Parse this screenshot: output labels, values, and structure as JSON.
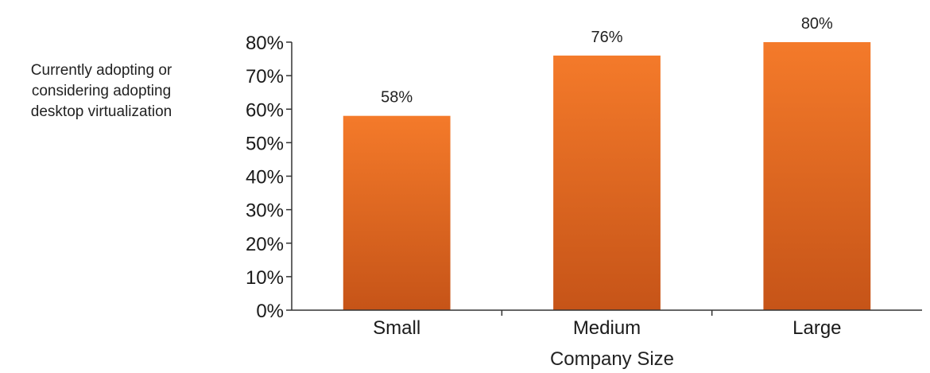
{
  "chart_data": {
    "type": "bar",
    "categories": [
      "Small",
      "Medium",
      "Large"
    ],
    "values": [
      58,
      76,
      80
    ],
    "data_labels": [
      "58%",
      "76%",
      "80%"
    ],
    "title": "",
    "xlabel": "Company Size",
    "ylabel": "Currently adopting or\nconsidering adopting\ndesktop virtualization",
    "ylim": [
      0,
      80
    ],
    "yticks": [
      0,
      10,
      20,
      30,
      40,
      50,
      60,
      70,
      80
    ],
    "ytick_labels": [
      "0%",
      "10%",
      "20%",
      "30%",
      "40%",
      "50%",
      "60%",
      "70%",
      "80%"
    ],
    "grid": false,
    "legend": "none",
    "colors": {
      "bar_top": "#F47A2A",
      "bar_bottom": "#C65418",
      "axis": "#333333"
    }
  }
}
